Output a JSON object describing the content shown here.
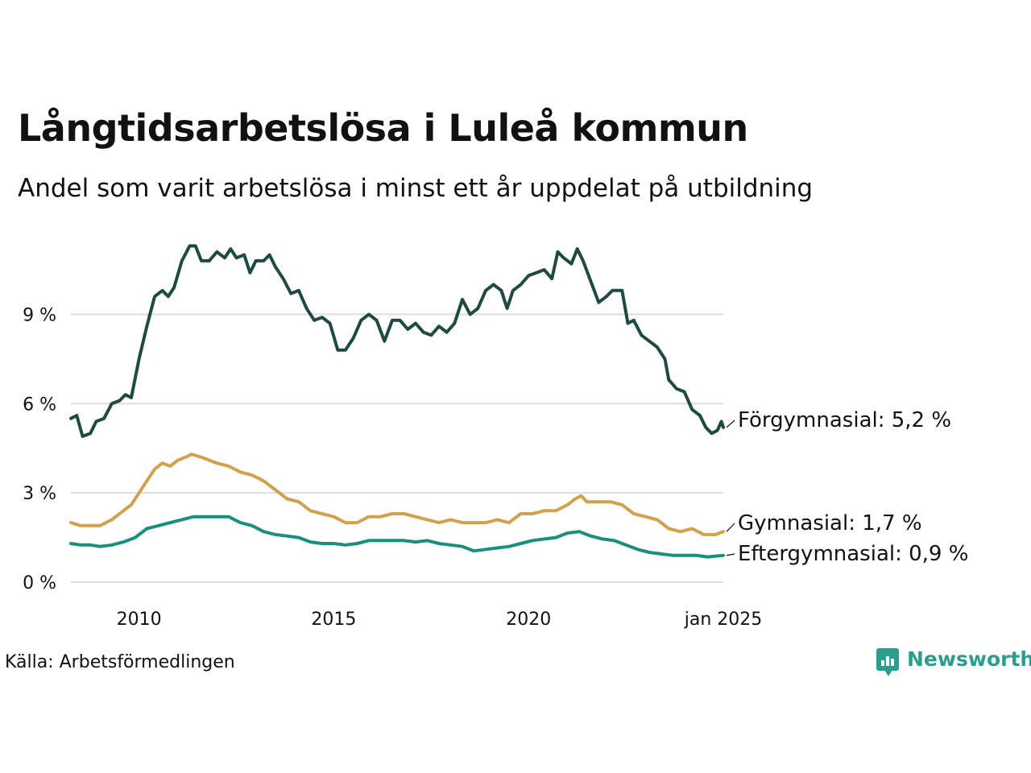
{
  "title": "Långtidsarbetslösa i Luleå kommun",
  "subtitle": "Andel som varit arbetslösa i minst ett år uppdelat på utbildning",
  "source": "Källa: Arbetsförmedlingen",
  "brand": "Newsworthy",
  "colors": {
    "forgymnasial": "#1f4a42",
    "gymnasial": "#d0a24e",
    "eftergymnasial": "#1a8f7e",
    "grid": "#dddddd",
    "brand": "#2a9d8f"
  },
  "chart_data": {
    "type": "line",
    "title": "Långtidsarbetslösa i Luleå kommun",
    "xlabel": "",
    "ylabel": "",
    "xlim": [
      2008.25,
      2025.0
    ],
    "ylim": [
      0,
      11.5
    ],
    "yticks": [
      0,
      3,
      6,
      9
    ],
    "ytick_labels": [
      "0 %",
      "3 %",
      "6 %",
      "9 %"
    ],
    "xticks": [
      2010,
      2015,
      2020,
      2025
    ],
    "xtick_labels": [
      "2010",
      "2015",
      "2020",
      "jan 2025"
    ],
    "grid": true,
    "series": [
      {
        "name": "Förgymnasial",
        "label": "Förgymnasial: 5,2 %",
        "color": "#1f4a42",
        "points": [
          [
            2008.25,
            5.5
          ],
          [
            2008.4,
            5.6
          ],
          [
            2008.55,
            4.9
          ],
          [
            2008.75,
            5.0
          ],
          [
            2008.9,
            5.4
          ],
          [
            2009.1,
            5.5
          ],
          [
            2009.3,
            6.0
          ],
          [
            2009.5,
            6.1
          ],
          [
            2009.65,
            6.3
          ],
          [
            2009.8,
            6.2
          ],
          [
            2010.0,
            7.5
          ],
          [
            2010.2,
            8.6
          ],
          [
            2010.4,
            9.6
          ],
          [
            2010.6,
            9.8
          ],
          [
            2010.75,
            9.6
          ],
          [
            2010.9,
            9.9
          ],
          [
            2011.1,
            10.8
          ],
          [
            2011.3,
            11.3
          ],
          [
            2011.45,
            11.3
          ],
          [
            2011.6,
            10.8
          ],
          [
            2011.8,
            10.8
          ],
          [
            2012.0,
            11.1
          ],
          [
            2012.2,
            10.9
          ],
          [
            2012.35,
            11.2
          ],
          [
            2012.5,
            10.9
          ],
          [
            2012.7,
            11.0
          ],
          [
            2012.85,
            10.4
          ],
          [
            2013.0,
            10.8
          ],
          [
            2013.2,
            10.8
          ],
          [
            2013.35,
            11.0
          ],
          [
            2013.5,
            10.6
          ],
          [
            2013.7,
            10.2
          ],
          [
            2013.9,
            9.7
          ],
          [
            2014.1,
            9.8
          ],
          [
            2014.3,
            9.2
          ],
          [
            2014.5,
            8.8
          ],
          [
            2014.7,
            8.9
          ],
          [
            2014.9,
            8.7
          ],
          [
            2015.1,
            7.8
          ],
          [
            2015.3,
            7.8
          ],
          [
            2015.5,
            8.2
          ],
          [
            2015.7,
            8.8
          ],
          [
            2015.9,
            9.0
          ],
          [
            2016.1,
            8.8
          ],
          [
            2016.3,
            8.1
          ],
          [
            2016.5,
            8.8
          ],
          [
            2016.7,
            8.8
          ],
          [
            2016.9,
            8.5
          ],
          [
            2017.1,
            8.7
          ],
          [
            2017.3,
            8.4
          ],
          [
            2017.5,
            8.3
          ],
          [
            2017.7,
            8.6
          ],
          [
            2017.9,
            8.4
          ],
          [
            2018.1,
            8.7
          ],
          [
            2018.3,
            9.5
          ],
          [
            2018.5,
            9.0
          ],
          [
            2018.7,
            9.2
          ],
          [
            2018.9,
            9.8
          ],
          [
            2019.1,
            10.0
          ],
          [
            2019.3,
            9.8
          ],
          [
            2019.45,
            9.2
          ],
          [
            2019.6,
            9.8
          ],
          [
            2019.8,
            10.0
          ],
          [
            2020.0,
            10.3
          ],
          [
            2020.2,
            10.4
          ],
          [
            2020.4,
            10.5
          ],
          [
            2020.6,
            10.2
          ],
          [
            2020.75,
            11.1
          ],
          [
            2020.9,
            10.9
          ],
          [
            2021.1,
            10.7
          ],
          [
            2021.25,
            11.2
          ],
          [
            2021.4,
            10.8
          ],
          [
            2021.6,
            10.1
          ],
          [
            2021.8,
            9.4
          ],
          [
            2022.0,
            9.6
          ],
          [
            2022.15,
            9.8
          ],
          [
            2022.4,
            9.8
          ],
          [
            2022.55,
            8.7
          ],
          [
            2022.7,
            8.8
          ],
          [
            2022.9,
            8.3
          ],
          [
            2023.1,
            8.1
          ],
          [
            2023.3,
            7.9
          ],
          [
            2023.5,
            7.5
          ],
          [
            2023.6,
            6.8
          ],
          [
            2023.8,
            6.5
          ],
          [
            2024.0,
            6.4
          ],
          [
            2024.2,
            5.8
          ],
          [
            2024.4,
            5.6
          ],
          [
            2024.55,
            5.2
          ],
          [
            2024.7,
            5.0
          ],
          [
            2024.85,
            5.1
          ],
          [
            2024.95,
            5.4
          ],
          [
            2025.0,
            5.2
          ]
        ]
      },
      {
        "name": "Gymnasial",
        "label": "Gymnasial: 1,7 %",
        "color": "#d0a24e",
        "points": [
          [
            2008.25,
            2.0
          ],
          [
            2008.5,
            1.9
          ],
          [
            2008.75,
            1.9
          ],
          [
            2009.0,
            1.9
          ],
          [
            2009.3,
            2.1
          ],
          [
            2009.6,
            2.4
          ],
          [
            2009.8,
            2.6
          ],
          [
            2010.0,
            3.0
          ],
          [
            2010.2,
            3.4
          ],
          [
            2010.4,
            3.8
          ],
          [
            2010.6,
            4.0
          ],
          [
            2010.8,
            3.9
          ],
          [
            2011.0,
            4.1
          ],
          [
            2011.2,
            4.2
          ],
          [
            2011.35,
            4.3
          ],
          [
            2011.6,
            4.2
          ],
          [
            2011.8,
            4.1
          ],
          [
            2012.0,
            4.0
          ],
          [
            2012.3,
            3.9
          ],
          [
            2012.6,
            3.7
          ],
          [
            2012.9,
            3.6
          ],
          [
            2013.2,
            3.4
          ],
          [
            2013.5,
            3.1
          ],
          [
            2013.8,
            2.8
          ],
          [
            2014.1,
            2.7
          ],
          [
            2014.4,
            2.4
          ],
          [
            2014.7,
            2.3
          ],
          [
            2015.0,
            2.2
          ],
          [
            2015.3,
            2.0
          ],
          [
            2015.6,
            2.0
          ],
          [
            2015.9,
            2.2
          ],
          [
            2016.2,
            2.2
          ],
          [
            2016.5,
            2.3
          ],
          [
            2016.8,
            2.3
          ],
          [
            2017.1,
            2.2
          ],
          [
            2017.4,
            2.1
          ],
          [
            2017.7,
            2.0
          ],
          [
            2018.0,
            2.1
          ],
          [
            2018.3,
            2.0
          ],
          [
            2018.6,
            2.0
          ],
          [
            2018.9,
            2.0
          ],
          [
            2019.2,
            2.1
          ],
          [
            2019.5,
            2.0
          ],
          [
            2019.8,
            2.3
          ],
          [
            2020.1,
            2.3
          ],
          [
            2020.4,
            2.4
          ],
          [
            2020.7,
            2.4
          ],
          [
            2021.0,
            2.6
          ],
          [
            2021.2,
            2.8
          ],
          [
            2021.35,
            2.9
          ],
          [
            2021.5,
            2.7
          ],
          [
            2021.8,
            2.7
          ],
          [
            2022.1,
            2.7
          ],
          [
            2022.4,
            2.6
          ],
          [
            2022.7,
            2.3
          ],
          [
            2023.0,
            2.2
          ],
          [
            2023.3,
            2.1
          ],
          [
            2023.6,
            1.8
          ],
          [
            2023.9,
            1.7
          ],
          [
            2024.2,
            1.8
          ],
          [
            2024.5,
            1.6
          ],
          [
            2024.8,
            1.6
          ],
          [
            2025.0,
            1.7
          ]
        ]
      },
      {
        "name": "Eftergymnasial",
        "label": "Eftergymnasial: 0,9 %",
        "color": "#1a8f7e",
        "points": [
          [
            2008.25,
            1.3
          ],
          [
            2008.5,
            1.25
          ],
          [
            2008.75,
            1.25
          ],
          [
            2009.0,
            1.2
          ],
          [
            2009.3,
            1.25
          ],
          [
            2009.6,
            1.35
          ],
          [
            2009.9,
            1.5
          ],
          [
            2010.2,
            1.8
          ],
          [
            2010.5,
            1.9
          ],
          [
            2010.8,
            2.0
          ],
          [
            2011.1,
            2.1
          ],
          [
            2011.4,
            2.2
          ],
          [
            2011.7,
            2.2
          ],
          [
            2012.0,
            2.2
          ],
          [
            2012.3,
            2.2
          ],
          [
            2012.6,
            2.0
          ],
          [
            2012.9,
            1.9
          ],
          [
            2013.2,
            1.7
          ],
          [
            2013.5,
            1.6
          ],
          [
            2013.8,
            1.55
          ],
          [
            2014.1,
            1.5
          ],
          [
            2014.4,
            1.35
          ],
          [
            2014.7,
            1.3
          ],
          [
            2015.0,
            1.3
          ],
          [
            2015.3,
            1.25
          ],
          [
            2015.6,
            1.3
          ],
          [
            2015.9,
            1.4
          ],
          [
            2016.2,
            1.4
          ],
          [
            2016.5,
            1.4
          ],
          [
            2016.8,
            1.4
          ],
          [
            2017.1,
            1.35
          ],
          [
            2017.4,
            1.4
          ],
          [
            2017.7,
            1.3
          ],
          [
            2018.0,
            1.25
          ],
          [
            2018.3,
            1.2
          ],
          [
            2018.6,
            1.05
          ],
          [
            2018.9,
            1.1
          ],
          [
            2019.2,
            1.15
          ],
          [
            2019.5,
            1.2
          ],
          [
            2019.8,
            1.3
          ],
          [
            2020.1,
            1.4
          ],
          [
            2020.4,
            1.45
          ],
          [
            2020.7,
            1.5
          ],
          [
            2021.0,
            1.65
          ],
          [
            2021.3,
            1.7
          ],
          [
            2021.6,
            1.55
          ],
          [
            2021.9,
            1.45
          ],
          [
            2022.2,
            1.4
          ],
          [
            2022.5,
            1.25
          ],
          [
            2022.8,
            1.1
          ],
          [
            2023.1,
            1.0
          ],
          [
            2023.4,
            0.95
          ],
          [
            2023.7,
            0.9
          ],
          [
            2024.0,
            0.9
          ],
          [
            2024.3,
            0.9
          ],
          [
            2024.6,
            0.85
          ],
          [
            2025.0,
            0.9
          ]
        ]
      }
    ]
  }
}
